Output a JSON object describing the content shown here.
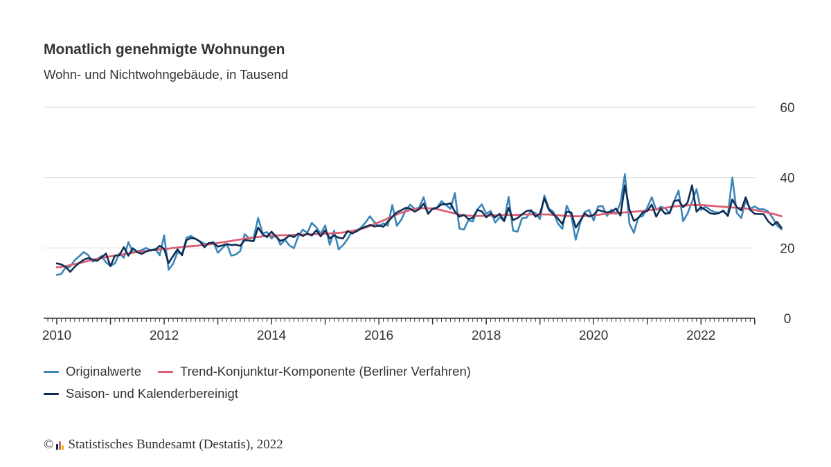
{
  "colors": {
    "original": "#3a86b8",
    "trend": "#dd5f73",
    "adjusted": "#0f2d52",
    "grid": "#dddddd",
    "axis": "#333333"
  },
  "chart_data": {
    "type": "line",
    "title": "Monatlich genehmigte Wohnungen",
    "subtitle": "Wohn- und Nichtwohngebäude, in Tausend",
    "xlabel": "",
    "ylabel": "",
    "x_start": "2010-01",
    "x_ticks": [
      "2010",
      "2012",
      "2014",
      "2016",
      "2018",
      "2020",
      "2022"
    ],
    "ylim": [
      0,
      60
    ],
    "y_ticks": [
      "0",
      "20",
      "40",
      "60"
    ],
    "grid": true,
    "y_axis_side": "right",
    "legend_position": "bottom",
    "series": [
      {
        "name": "Originalwerte",
        "color_key": "original",
        "values": [
          12.3,
          12.6,
          14.5,
          14.7,
          16.5,
          17.6,
          18.8,
          18.0,
          16.1,
          16.8,
          17.7,
          15.9,
          14.9,
          15.6,
          18.4,
          17.2,
          21.7,
          18.7,
          19.0,
          19.4,
          20.0,
          19.2,
          19.8,
          17.9,
          23.6,
          13.8,
          15.5,
          18.8,
          18.2,
          22.9,
          23.4,
          22.6,
          21.9,
          21.2,
          21.1,
          21.7,
          18.6,
          19.9,
          21.1,
          17.8,
          18.1,
          19.1,
          23.9,
          22.7,
          22.8,
          28.5,
          24.2,
          24.5,
          22.7,
          23.7,
          20.9,
          22.3,
          20.7,
          19.9,
          23.3,
          25.2,
          24.3,
          27.1,
          25.9,
          24.0,
          26.4,
          20.9,
          24.9,
          19.6,
          20.8,
          22.5,
          24.8,
          24.9,
          25.8,
          27.2,
          29.0,
          27.3,
          26.1,
          27.0,
          26.3,
          32.2,
          26.3,
          28.0,
          30.7,
          32.3,
          31.1,
          31.5,
          34.4,
          29.6,
          31.2,
          31.5,
          33.3,
          32.2,
          31.1,
          35.6,
          25.5,
          25.2,
          27.9,
          27.5,
          30.9,
          32.4,
          29.7,
          30.5,
          27.2,
          28.7,
          27.7,
          34.5,
          24.9,
          24.6,
          28.4,
          28.6,
          30.5,
          29.9,
          28.2,
          34.9,
          31.2,
          30.3,
          27.0,
          25.4,
          32.0,
          29.2,
          22.3,
          27.1,
          30.2,
          30.8,
          27.8,
          31.8,
          31.9,
          29.1,
          30.9,
          29.7,
          32.8,
          41.0,
          26.9,
          24.3,
          28.7,
          29.1,
          31.5,
          34.4,
          30.8,
          31.7,
          31.3,
          29.8,
          33.3,
          36.3,
          27.6,
          29.8,
          33.1,
          36.7,
          30.8,
          31.8,
          30.8,
          30.2,
          30.0,
          30.4,
          29.3,
          40.0,
          30.0,
          28.5,
          33.5,
          31.2,
          31.8,
          31.0,
          31.0,
          30.4,
          28.6,
          26.4,
          25.3
        ]
      },
      {
        "name": "Trend-Konjunktur-Komponente (Berliner Verfahren)",
        "color_key": "trend",
        "values": [
          14.5,
          14.6,
          14.8,
          15.1,
          15.4,
          15.7,
          16.0,
          16.3,
          16.6,
          16.9,
          17.1,
          17.4,
          17.6,
          17.8,
          18.0,
          18.2,
          18.4,
          18.6,
          18.8,
          19.0,
          19.1,
          19.3,
          19.4,
          19.6,
          19.7,
          19.8,
          20.0,
          20.1,
          20.2,
          20.4,
          20.5,
          20.6,
          20.7,
          20.9,
          21.0,
          21.2,
          21.4,
          21.6,
          21.8,
          22.0,
          22.2,
          22.4,
          22.6,
          22.8,
          23.0,
          23.1,
          23.3,
          23.4,
          23.5,
          23.5,
          23.6,
          23.6,
          23.6,
          23.7,
          23.7,
          23.8,
          23.8,
          23.9,
          23.9,
          24.0,
          24.0,
          24.1,
          24.2,
          24.3,
          24.4,
          24.6,
          24.8,
          25.1,
          25.4,
          25.8,
          26.3,
          26.8,
          27.3,
          27.8,
          28.4,
          29.0,
          29.5,
          30.0,
          30.4,
          30.8,
          31.0,
          31.2,
          31.3,
          31.3,
          31.2,
          31.0,
          30.7,
          30.4,
          30.1,
          29.8,
          29.5,
          29.3,
          29.2,
          29.1,
          29.1,
          29.1,
          29.1,
          29.2,
          29.3,
          29.3,
          29.4,
          29.4,
          29.4,
          29.4,
          29.5,
          29.5,
          29.5,
          29.5,
          29.5,
          29.5,
          29.5,
          29.4,
          29.3,
          29.2,
          29.1,
          29.0,
          29.0,
          29.0,
          29.1,
          29.2,
          29.3,
          29.4,
          29.6,
          29.7,
          29.8,
          29.9,
          30.0,
          30.1,
          30.2,
          30.3,
          30.4,
          30.5,
          30.7,
          30.8,
          31.0,
          31.2,
          31.4,
          31.6,
          31.8,
          31.9,
          32.0,
          32.1,
          32.2,
          32.2,
          32.2,
          32.1,
          32.0,
          31.9,
          31.8,
          31.7,
          31.6,
          31.5,
          31.4,
          31.3,
          31.2,
          31.0,
          30.8,
          30.5,
          30.3,
          30.0,
          29.7,
          29.4,
          29.0
        ]
      },
      {
        "name": "Saison- und Kalenderbereinigt",
        "color_key": "adjusted",
        "values": [
          15.6,
          15.3,
          14.6,
          13.2,
          14.6,
          15.7,
          16.6,
          17.1,
          16.7,
          16.3,
          17.3,
          18.4,
          14.8,
          17.8,
          17.9,
          20.2,
          17.8,
          19.9,
          18.8,
          18.3,
          19.0,
          19.4,
          19.4,
          20.6,
          19.8,
          15.7,
          17.7,
          19.6,
          17.9,
          22.2,
          22.8,
          22.6,
          21.8,
          20.2,
          21.4,
          21.4,
          20.4,
          20.7,
          21.1,
          20.8,
          20.9,
          20.6,
          22.2,
          22.1,
          21.9,
          25.8,
          23.9,
          23.1,
          24.6,
          23.2,
          22.0,
          22.5,
          23.5,
          23.1,
          24.1,
          23.4,
          24.1,
          23.5,
          25.0,
          23.3,
          25.0,
          22.7,
          23.5,
          22.9,
          22.7,
          24.8,
          24.1,
          24.7,
          25.5,
          26.0,
          26.5,
          26.1,
          26.4,
          26.0,
          27.5,
          28.8,
          30.1,
          30.7,
          31.4,
          31.2,
          30.3,
          31.0,
          32.6,
          29.8,
          31.1,
          31.4,
          32.4,
          32.4,
          32.7,
          30.3,
          28.9,
          29.4,
          28.2,
          28.5,
          30.8,
          30.4,
          28.7,
          29.8,
          28.7,
          29.7,
          27.6,
          31.4,
          27.9,
          28.5,
          29.5,
          30.5,
          30.7,
          28.9,
          29.7,
          34.1,
          30.8,
          29.6,
          28.4,
          26.8,
          30.3,
          30.1,
          25.8,
          27.7,
          29.8,
          28.9,
          29.4,
          30.8,
          30.4,
          30.1,
          30.3,
          31.2,
          29.2,
          37.8,
          30.9,
          27.7,
          28.5,
          30.1,
          30.5,
          32.3,
          28.9,
          31.2,
          29.7,
          30.0,
          33.3,
          33.6,
          31.6,
          32.9,
          37.8,
          30.3,
          31.6,
          30.8,
          29.9,
          29.6,
          29.9,
          30.6,
          29.1,
          33.8,
          31.6,
          30.7,
          34.4,
          30.8,
          29.7,
          29.6,
          29.6,
          27.6,
          26.4,
          27.4,
          25.7
        ]
      }
    ]
  },
  "footer": {
    "copyright_symbol": "©",
    "source": "Statistisches Bundesamt (Destatis), 2022"
  }
}
